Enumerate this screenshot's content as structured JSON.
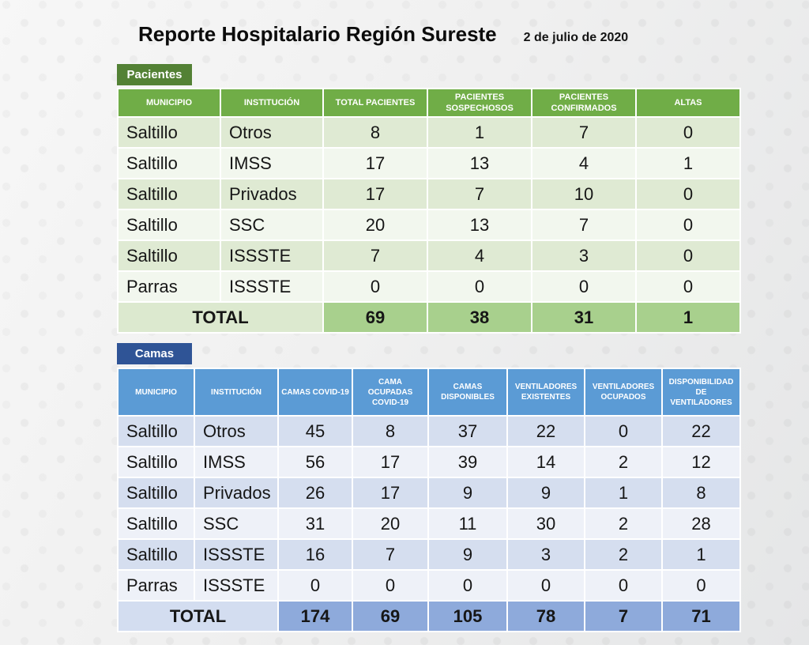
{
  "title": "Reporte Hospitalario Región Sureste",
  "date": "2 de julio de 2020",
  "patients": {
    "tab_label": "Pacientes",
    "columns": [
      "MUNICIPIO",
      "INSTITUCIÓN",
      "TOTAL PACIENTES",
      "PACIENTES SOSPECHOSOS",
      "PACIENTES CONFIRMADOS",
      "ALTAS"
    ],
    "rows": [
      [
        "Saltillo",
        "Otros",
        "8",
        "1",
        "7",
        "0"
      ],
      [
        "Saltillo",
        "IMSS",
        "17",
        "13",
        "4",
        "1"
      ],
      [
        "Saltillo",
        "Privados",
        "17",
        "7",
        "10",
        "0"
      ],
      [
        "Saltillo",
        "SSC",
        "20",
        "13",
        "7",
        "0"
      ],
      [
        "Saltillo",
        "ISSSTE",
        "7",
        "4",
        "3",
        "0"
      ],
      [
        "Parras",
        "ISSSTE",
        "0",
        "0",
        "0",
        "0"
      ]
    ],
    "total_label": "TOTAL",
    "totals": [
      "69",
      "38",
      "31",
      "1"
    ]
  },
  "beds": {
    "tab_label": "Camas",
    "columns": [
      "MUNICIPIO",
      "INSTITUCIÓN",
      "CAMAS COVID-19",
      "CAMA OCUPADAS COVID-19",
      "CAMAS DISPONIBLES",
      "VENTILADORES EXISTENTES",
      "VENTILADORES OCUPADOS",
      "DISPONIBILIDAD DE VENTILADORES"
    ],
    "rows": [
      [
        "Saltillo",
        "Otros",
        "45",
        "8",
        "37",
        "22",
        "0",
        "22"
      ],
      [
        "Saltillo",
        "IMSS",
        "56",
        "17",
        "39",
        "14",
        "2",
        "12"
      ],
      [
        "Saltillo",
        "Privados",
        "26",
        "17",
        "9",
        "9",
        "1",
        "8"
      ],
      [
        "Saltillo",
        "SSC",
        "31",
        "20",
        "11",
        "30",
        "2",
        "28"
      ],
      [
        "Saltillo",
        "ISSSTE",
        "16",
        "7",
        "9",
        "3",
        "2",
        "1"
      ],
      [
        "Parras",
        "ISSSTE",
        "0",
        "0",
        "0",
        "0",
        "0",
        "0"
      ]
    ],
    "total_label": "TOTAL",
    "totals": [
      "174",
      "69",
      "105",
      "78",
      "7",
      "71"
    ]
  },
  "colors": {
    "patients_tab": "#538135",
    "patients_header": "#70AD47",
    "patients_row_odd": "#DFEAD3",
    "patients_row_even": "#F2F7EE",
    "patients_total_label": "#DCE9CF",
    "patients_total_value": "#A8D08D",
    "beds_tab": "#2F5496",
    "beds_header": "#5B9BD5",
    "beds_row_odd": "#D5DEEF",
    "beds_row_even": "#EEF1F8",
    "beds_total_label": "#D3DDF0",
    "beds_total_value": "#8EAADB"
  }
}
